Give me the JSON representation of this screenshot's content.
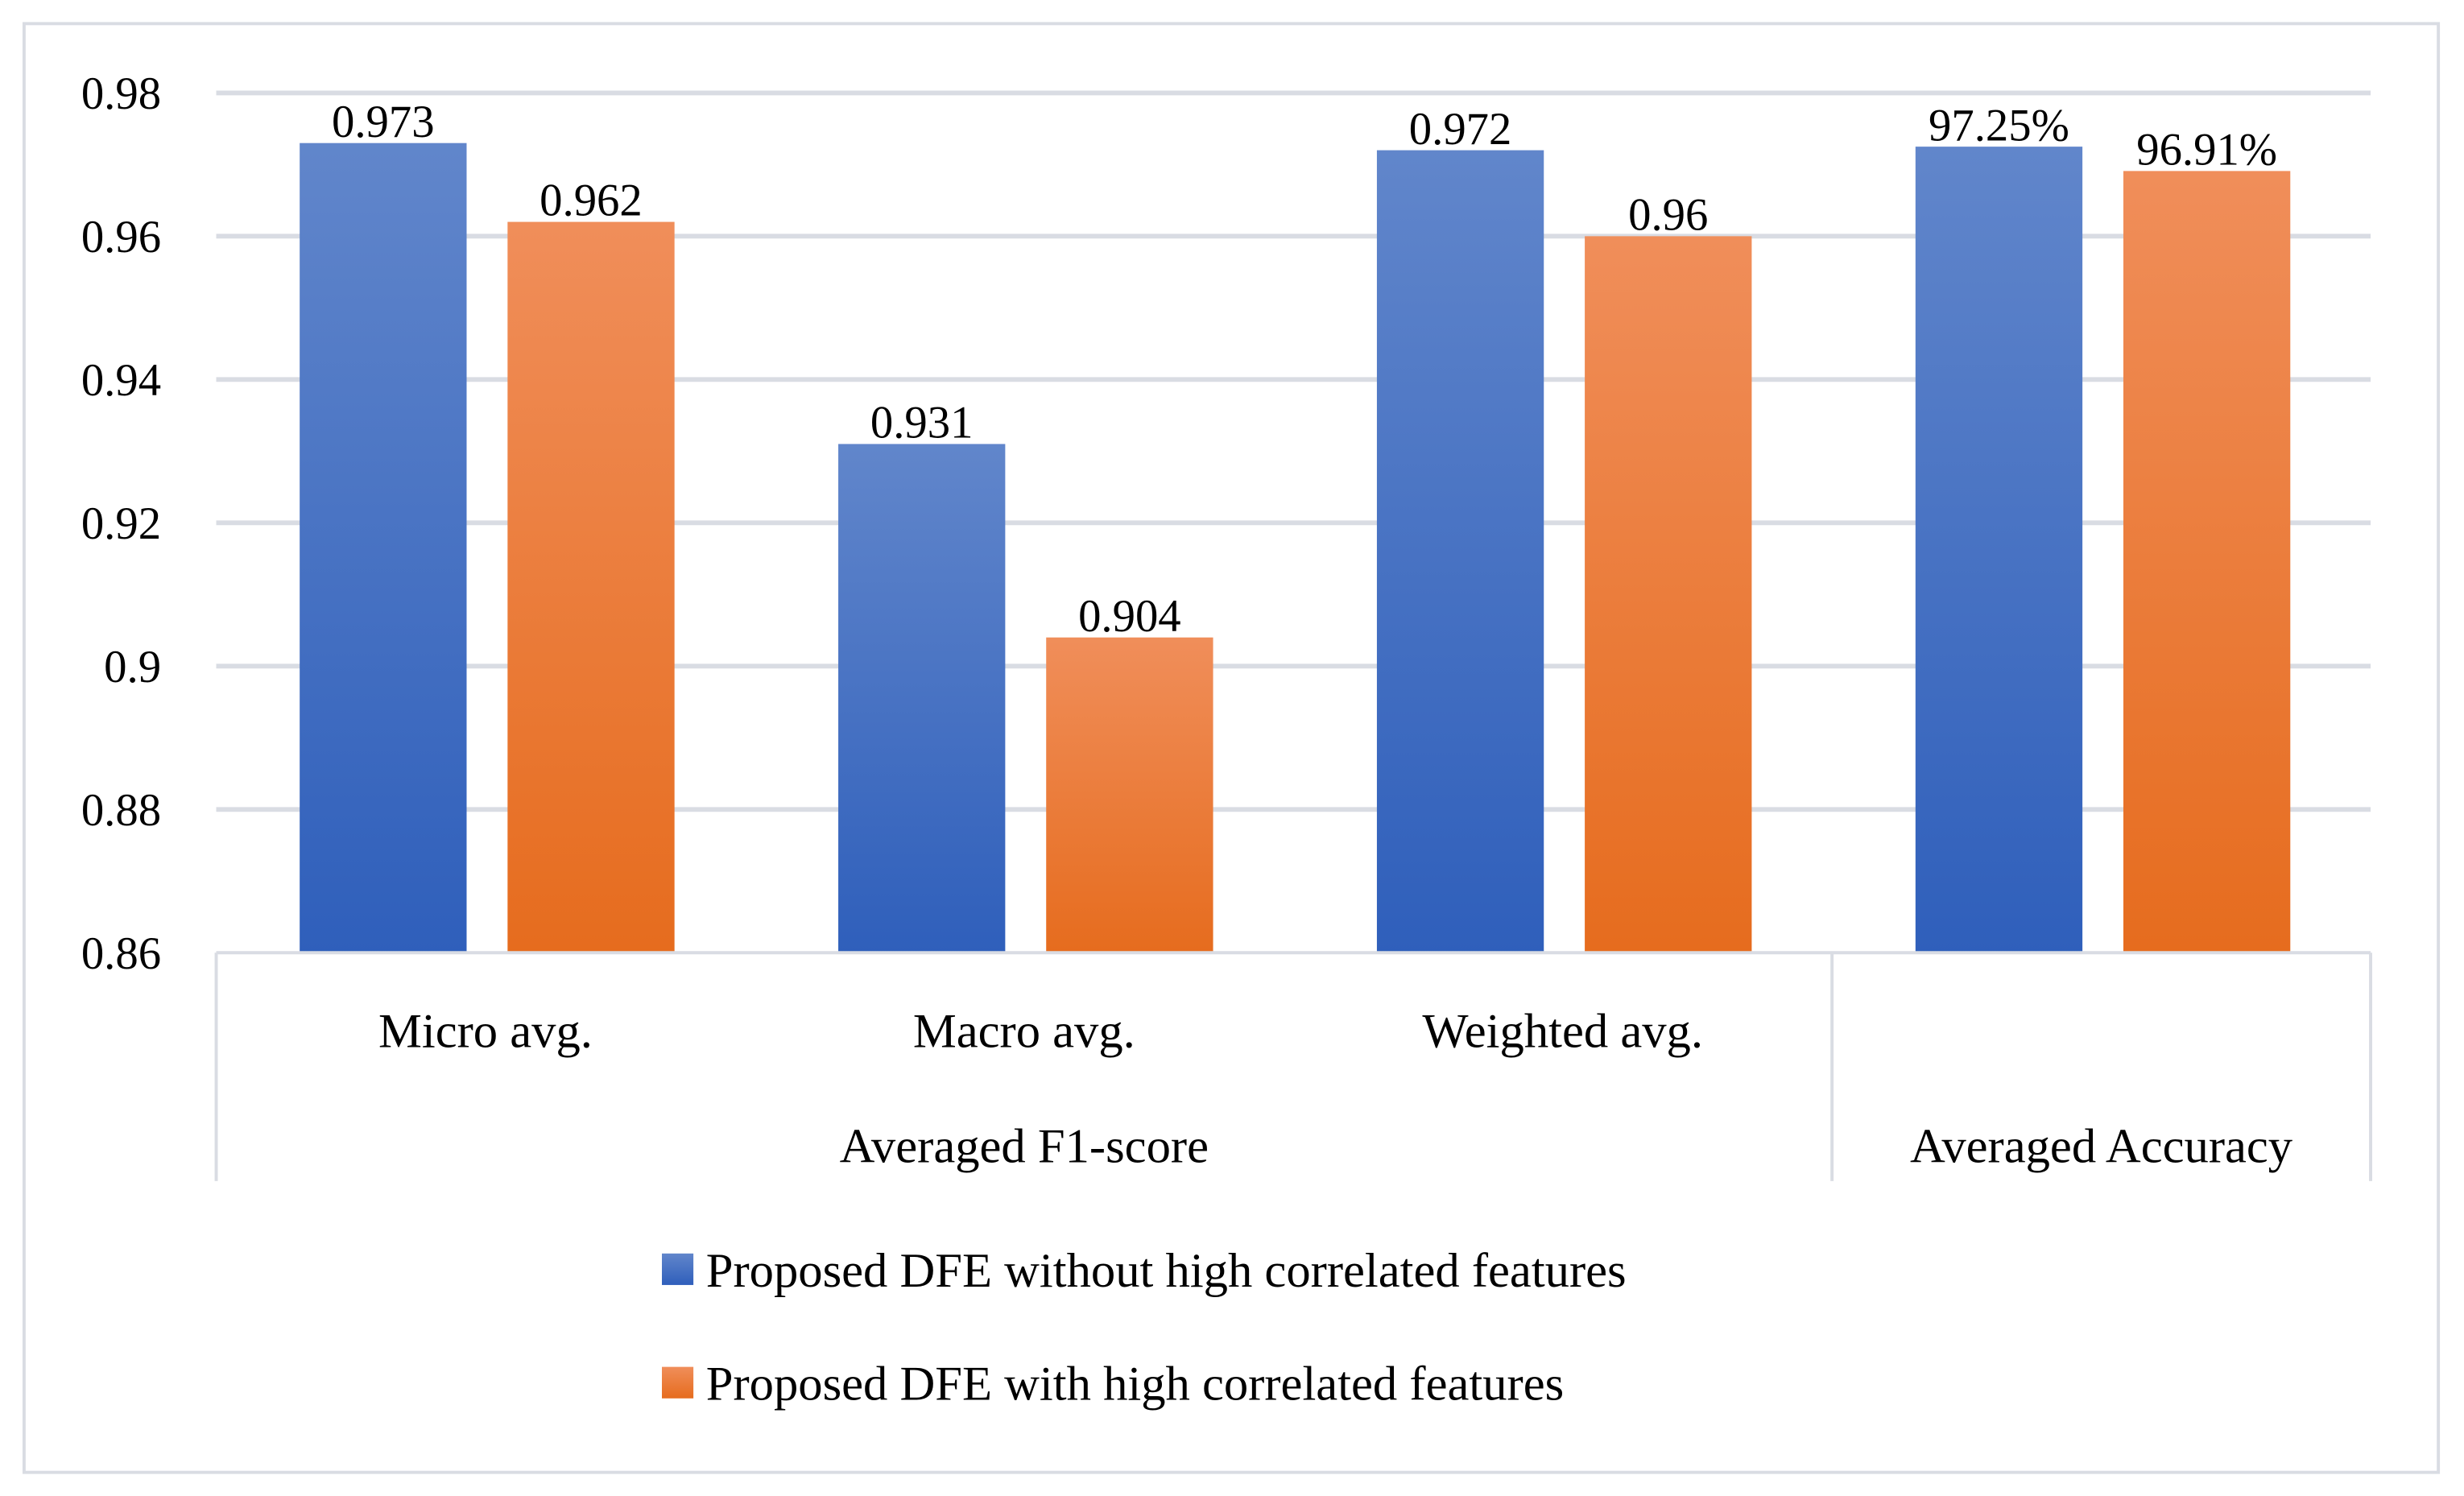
{
  "chart_data": {
    "type": "bar",
    "title": "",
    "xlabel": "",
    "ylabel": "",
    "ylim": [
      0.86,
      0.98
    ],
    "yticks": [
      "0.98",
      "0.96",
      "0.94",
      "0.92",
      "0.9",
      "0.88",
      "0.86"
    ],
    "ytick_values": [
      0.98,
      0.96,
      0.94,
      0.92,
      0.9,
      0.88,
      0.86
    ],
    "grid": true,
    "categories": [
      "Micro avg.",
      "Macro avg.",
      "Weighted avg.",
      ""
    ],
    "group_labels": [
      {
        "label": "Averaged F1-score",
        "span": [
          0,
          2
        ]
      },
      {
        "label": "Averaged Accuracy",
        "span": [
          3,
          3
        ]
      }
    ],
    "series": [
      {
        "name": "Proposed DFE without high correlated features",
        "color": "#4472C4",
        "values": [
          0.973,
          0.931,
          0.972,
          0.9725
        ],
        "labels": [
          "0.973",
          "0.931",
          "0.972",
          "97.25%"
        ]
      },
      {
        "name": "Proposed DFE with high correlated features",
        "color": "#ED7D31",
        "values": [
          0.962,
          0.904,
          0.96,
          0.9691
        ],
        "labels": [
          "0.962",
          "0.904",
          "0.96",
          "96.91%"
        ]
      }
    ],
    "legend_position": "bottom"
  }
}
